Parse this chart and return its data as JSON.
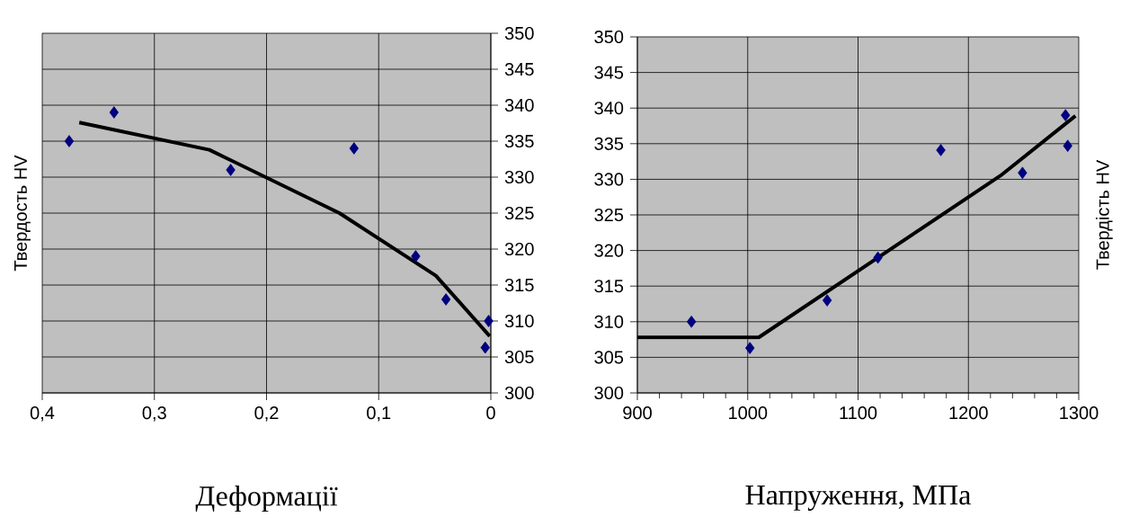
{
  "chart_data": [
    {
      "type": "scatter",
      "xlabel": "Деформації",
      "ylabel": "Твердость HV",
      "xlim": [
        0.4,
        0
      ],
      "ylim": [
        300,
        350
      ],
      "xticks": [
        {
          "value": 0.4,
          "label": "0,4"
        },
        {
          "value": 0.3,
          "label": "0,3"
        },
        {
          "value": 0.2,
          "label": "0,2"
        },
        {
          "value": 0.1,
          "label": "0,1"
        },
        0
      ],
      "yticks": [
        300,
        305,
        310,
        315,
        320,
        325,
        330,
        335,
        340,
        345,
        350
      ],
      "grid": true,
      "series": [
        {
          "marker": "diamond",
          "color": "#000080",
          "x": [
            0.376,
            0.336,
            0.232,
            0.122,
            0.067,
            0.04,
            0.002,
            0.005
          ],
          "values": [
            335,
            339,
            331,
            334,
            319,
            313,
            310,
            306.3
          ]
        },
        {
          "type": "line",
          "marker": "none",
          "color": "#000000",
          "x": [
            0.367,
            0.251,
            0.135,
            0.049,
            0.001
          ],
          "values": [
            337.6,
            333.8,
            325.0,
            316.3,
            307.9
          ]
        }
      ]
    },
    {
      "type": "scatter",
      "xlabel": "Напруження, МПа",
      "ylabel": "Твердість HV",
      "xlim": [
        900,
        1300
      ],
      "ylim": [
        300,
        350
      ],
      "xticks": [
        900,
        {
          "value": 920,
          "label": null
        },
        {
          "value": 940,
          "label": null
        },
        {
          "value": 960,
          "label": null
        },
        {
          "value": 980,
          "label": null
        },
        1000,
        {
          "value": 1020,
          "label": null
        },
        {
          "value": 1040,
          "label": null
        },
        {
          "value": 1060,
          "label": null
        },
        {
          "value": 1080,
          "label": null
        },
        1100,
        {
          "value": 1120,
          "label": null
        },
        {
          "value": 1140,
          "label": null
        },
        {
          "value": 1160,
          "label": null
        },
        {
          "value": 1180,
          "label": null
        },
        1200,
        {
          "value": 1220,
          "label": null
        },
        {
          "value": 1240,
          "label": null
        },
        {
          "value": 1260,
          "label": null
        },
        {
          "value": 1280,
          "label": null
        },
        1300
      ],
      "yticks": [
        300,
        305,
        310,
        315,
        320,
        325,
        330,
        335,
        340,
        345,
        350
      ],
      "grid": true,
      "series": [
        {
          "marker": "diamond",
          "color": "#000080",
          "x": [
            949,
            1002,
            1072,
            1118,
            1175,
            1249,
            1288,
            1290
          ],
          "values": [
            310,
            306.3,
            313,
            319,
            334.1,
            330.9,
            339,
            334.7
          ]
        },
        {
          "type": "line",
          "marker": "none",
          "color": "#000000",
          "x": [
            900,
            1010,
            1229,
            1297
          ],
          "values": [
            307.8,
            307.8,
            330.5,
            338.9
          ]
        }
      ]
    }
  ]
}
